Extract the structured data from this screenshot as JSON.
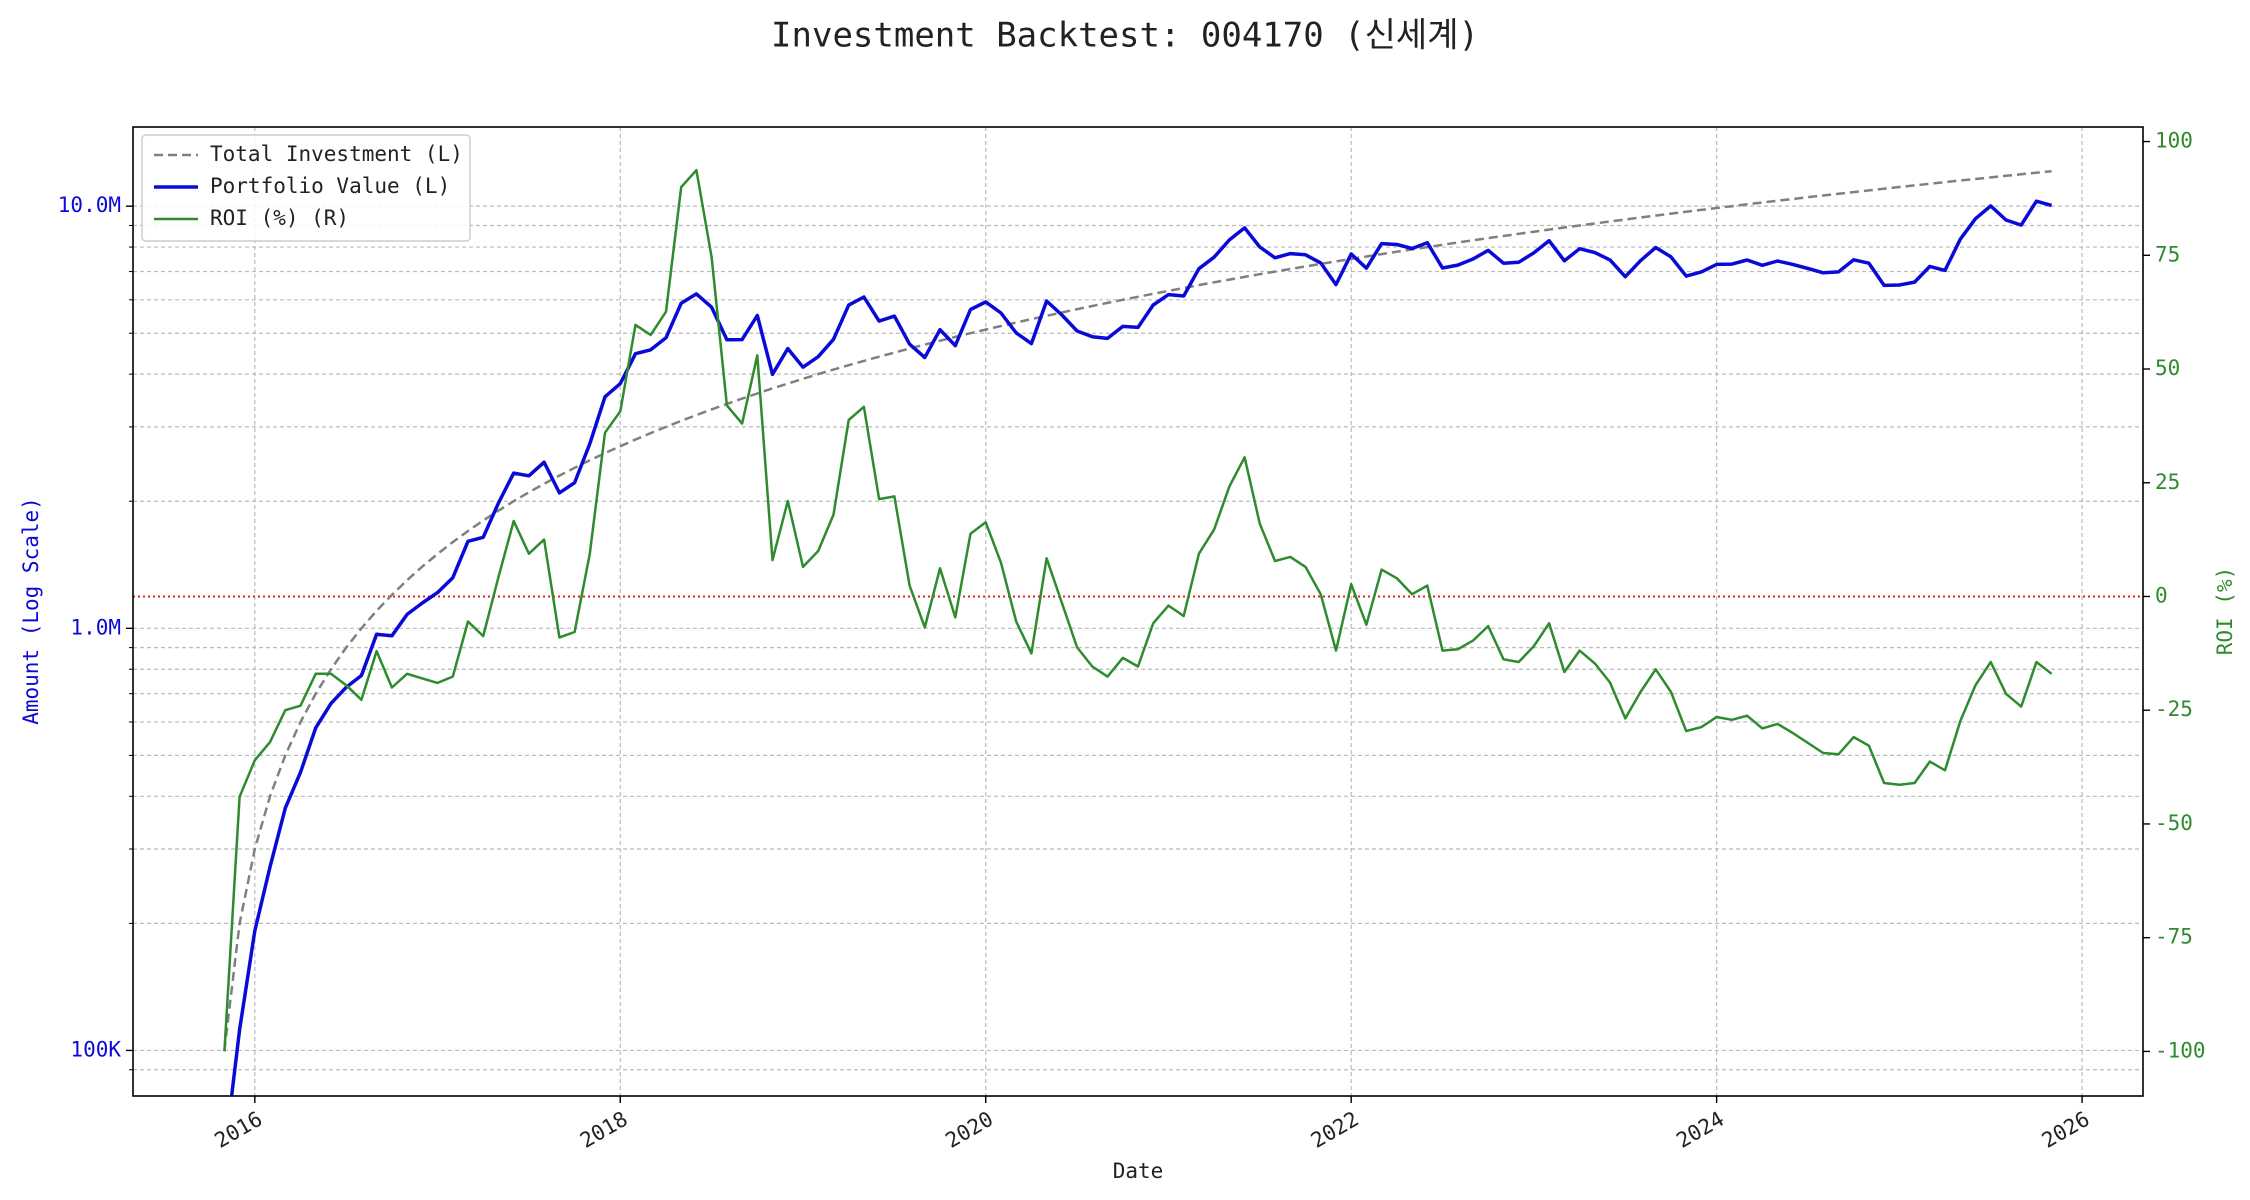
{
  "chart_data": {
    "type": "line",
    "title": "Investment Backtest: 004170 (신세계)",
    "xlabel": "Date",
    "ylabel": "Amount (Log Scale)",
    "y2label": "ROI (%)",
    "x": [
      "2015-11",
      "2015-12",
      "2016-01",
      "2016-02",
      "2016-03",
      "2016-04",
      "2016-05",
      "2016-06",
      "2016-07",
      "2016-08",
      "2016-09",
      "2016-10",
      "2016-11",
      "2016-12",
      "2017-01",
      "2017-02",
      "2017-03",
      "2017-04",
      "2017-05",
      "2017-06",
      "2017-07",
      "2017-08",
      "2017-09",
      "2017-10",
      "2017-11",
      "2017-12",
      "2018-01",
      "2018-02",
      "2018-03",
      "2018-04",
      "2018-05",
      "2018-06",
      "2018-07",
      "2018-08",
      "2018-09",
      "2018-10",
      "2018-11",
      "2018-12",
      "2019-01",
      "2019-02",
      "2019-03",
      "2019-04",
      "2019-05",
      "2019-06",
      "2019-07",
      "2019-08",
      "2019-09",
      "2019-10",
      "2019-11",
      "2019-12",
      "2020-01",
      "2020-02",
      "2020-03",
      "2020-04",
      "2020-05",
      "2020-06",
      "2020-07",
      "2020-08",
      "2020-09",
      "2020-10",
      "2020-11",
      "2020-12",
      "2021-01",
      "2021-02",
      "2021-03",
      "2021-04",
      "2021-05",
      "2021-06",
      "2021-07",
      "2021-08",
      "2021-09",
      "2021-10",
      "2021-11",
      "2021-12",
      "2022-01",
      "2022-02",
      "2022-03",
      "2022-04",
      "2022-05",
      "2022-06",
      "2022-07",
      "2022-08",
      "2022-09",
      "2022-10",
      "2022-11",
      "2022-12",
      "2023-01",
      "2023-02",
      "2023-03",
      "2023-04",
      "2023-05",
      "2023-06",
      "2023-07",
      "2023-08",
      "2023-09",
      "2023-10",
      "2023-11",
      "2023-12",
      "2024-01",
      "2024-02",
      "2024-03",
      "2024-04",
      "2024-05",
      "2024-06",
      "2024-07",
      "2024-08",
      "2024-09",
      "2024-10",
      "2024-11",
      "2024-12",
      "2025-01",
      "2025-02",
      "2025-03",
      "2025-04",
      "2025-05",
      "2025-06",
      "2025-07",
      "2025-08",
      "2025-09",
      "2025-10",
      "2025-11"
    ],
    "series": [
      {
        "name": "Total Investment (L)",
        "color": "#808080",
        "linestyle": "dashed",
        "linewidth": 2.5,
        "axis": "y",
        "values": [
          100000,
          200000,
          300000,
          400000,
          500000,
          600000,
          700000,
          800000,
          900000,
          1000000,
          1100000,
          1200000,
          1300000,
          1400000,
          1500000,
          1600000,
          1700000,
          1800000,
          1900000,
          2000000,
          2100000,
          2200000,
          2300000,
          2400000,
          2500000,
          2600000,
          2700000,
          2800000,
          2900000,
          3000000,
          3100000,
          3200000,
          3300000,
          3400000,
          3500000,
          3600000,
          3700000,
          3800000,
          3900000,
          4000000,
          4100000,
          4200000,
          4300000,
          4400000,
          4500000,
          4600000,
          4700000,
          4800000,
          4900000,
          5000000,
          5100000,
          5200000,
          5300000,
          5400000,
          5500000,
          5600000,
          5700000,
          5800000,
          5900000,
          6000000,
          6100000,
          6200000,
          6300000,
          6400000,
          6500000,
          6600000,
          6700000,
          6800000,
          6900000,
          7000000,
          7100000,
          7200000,
          7300000,
          7400000,
          7500000,
          7600000,
          7700000,
          7800000,
          7900000,
          8000000,
          8100000,
          8200000,
          8300000,
          8400000,
          8500000,
          8600000,
          8700000,
          8800000,
          8900000,
          9000000,
          9100000,
          9200000,
          9300000,
          9400000,
          9500000,
          9600000,
          9700000,
          9800000,
          9900000,
          10000000,
          10100000,
          10200000,
          10300000,
          10400000,
          10500000,
          10600000,
          10700000,
          10800000,
          10900000,
          11000000,
          11100000,
          11200000,
          11300000,
          11400000,
          11500000,
          11600000,
          11700000,
          11800000,
          11900000,
          12000000,
          12100000
        ]
      },
      {
        "name": "Portfolio Value (L)",
        "color": "#0a0ad8",
        "linestyle": "solid",
        "linewidth": 3.5,
        "axis": "y",
        "values": [
          0,
          112000,
          192000,
          272000,
          375000,
          456000,
          581000,
          664000,
          725000,
          773000,
          968000,
          960000,
          1079000,
          1148000,
          1215000,
          1318000,
          1607000,
          1643000,
          1982000,
          2332000,
          2297000,
          2475000,
          2093000,
          2213000,
          2735000,
          3536000,
          3799000,
          4472000,
          4568000,
          4878000,
          5890000,
          6198000,
          5762000,
          4828000,
          4830000,
          5508000,
          3996000,
          4598000,
          4154000,
          4400000,
          4838000,
          5830000,
          6093000,
          5342000,
          5490000,
          4710000,
          4380000,
          5098000,
          4675000,
          5690000,
          5931000,
          5585000,
          5009000,
          4725000,
          5962000,
          5522000,
          5062000,
          4907000,
          4862000,
          5190000,
          5161000,
          5834000,
          6174000,
          6125000,
          7111000,
          7570000,
          8321000,
          8881000,
          8004000,
          7546000,
          7718000,
          7668000,
          7337000,
          6519000,
          7703000,
          7129000,
          8154000,
          8112000,
          7940000,
          8192000,
          7136000,
          7249000,
          7495000,
          7854000,
          7327000,
          7362000,
          7752000,
          8281000,
          7423000,
          7929000,
          7762000,
          7461000,
          6808000,
          7426000,
          7980000,
          7584000,
          6829000,
          6987000,
          7277000,
          7290000,
          7454000,
          7242000,
          7416000,
          7280000,
          7119000,
          6954000,
          6987000,
          7463000,
          7325000,
          6490000,
          6505000,
          6608000,
          7198000,
          7045000,
          8349000,
          9338000,
          10015000,
          9275000,
          9020000,
          10272000,
          10043000
        ]
      },
      {
        "name": "ROI (%) (R)",
        "color": "#2e8b2e",
        "linestyle": "solid",
        "linewidth": 2.5,
        "axis": "y2",
        "values": [
          -100,
          -44,
          -36,
          -32,
          -25,
          -24,
          -17,
          -17,
          -19.5,
          -22.7,
          -12,
          -20,
          -17,
          -18,
          -19,
          -17.6,
          -5.5,
          -8.7,
          4.3,
          16.6,
          9.4,
          12.5,
          -9,
          -7.8,
          9.4,
          36,
          40.7,
          59.7,
          57.5,
          62.6,
          90,
          93.7,
          74.6,
          42,
          38,
          53,
          8,
          21,
          6.5,
          10,
          18,
          38.8,
          41.7,
          21.4,
          22,
          2.4,
          -6.8,
          6.2,
          -4.6,
          13.8,
          16.3,
          7.4,
          -5.5,
          -12.5,
          8.4,
          -1.4,
          -11.2,
          -15.4,
          -17.6,
          -13.5,
          -15.4,
          -5.9,
          -2,
          -4.3,
          9.4,
          14.7,
          24.2,
          30.6,
          16,
          7.8,
          8.7,
          6.5,
          0.5,
          -11.9,
          2.7,
          -6.2,
          5.9,
          4,
          0.5,
          2.4,
          -11.9,
          -11.6,
          -9.7,
          -6.5,
          -13.8,
          -14.4,
          -10.9,
          -5.9,
          -16.6,
          -11.9,
          -14.7,
          -18.9,
          -26.8,
          -21,
          -16,
          -21,
          -29.6,
          -28.7,
          -26.5,
          -27.1,
          -26.2,
          -29,
          -28,
          -30,
          -32.2,
          -34.4,
          -34.7,
          -30.9,
          -32.8,
          -41,
          -41.4,
          -41,
          -36.3,
          -38.2,
          -27.4,
          -19.5,
          -14.4,
          -21.4,
          -24.2,
          -14.4,
          -17
        ]
      }
    ],
    "xlim": [
      "2015-05",
      "2026-05"
    ],
    "xticks": [
      2016,
      2018,
      2020,
      2022,
      2024,
      2026
    ],
    "ylog": true,
    "ylim": [
      78000,
      15400000
    ],
    "yticks": [
      {
        "value": 100000,
        "label": "100K"
      },
      {
        "value": 1000000,
        "label": "1.0M"
      },
      {
        "value": 10000000,
        "label": "10.0M"
      }
    ],
    "yminor_ticks": [
      90000,
      200000,
      300000,
      400000,
      500000,
      600000,
      700000,
      800000,
      900000,
      2000000,
      3000000,
      4000000,
      5000000,
      6000000,
      7000000,
      8000000,
      9000000
    ],
    "ytick_color": "#0a0ad8",
    "y2lim": [
      -109.8,
      103.2
    ],
    "y2ticks": [
      -100,
      -75,
      -50,
      -25,
      0,
      25,
      50,
      75,
      100
    ],
    "y2tick_color": "#2e8b2e",
    "reference_line": {
      "axis": "y2",
      "value": 0,
      "color": "#e02020"
    },
    "grid": true,
    "legend": "upper left"
  }
}
